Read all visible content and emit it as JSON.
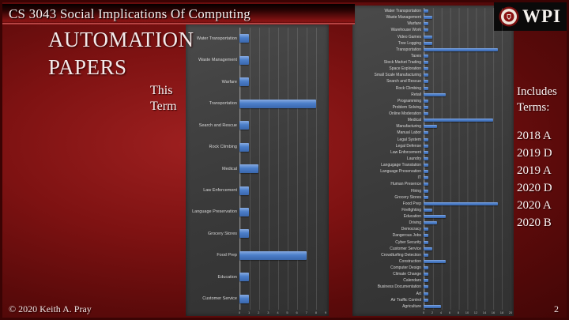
{
  "header": {
    "course_title": "CS 3043 Social Implications Of Computing",
    "logo_text": "WPI"
  },
  "slide": {
    "heading": "AUTOMATION PAPERS",
    "caption": "This Term",
    "includes_label": "Includes Terms:",
    "terms": [
      "2018 A",
      "2019 D",
      "2019 A",
      "2020 D",
      "2020 A",
      "2020 B"
    ]
  },
  "footer": {
    "copyright": "© 2020 Keith A. Pray",
    "page_number": "2"
  },
  "colors": {
    "background_red": "#7e1212",
    "banner_red": "#8c1414",
    "panel_grey": "#3f3f3f",
    "bar_blue": "#4b7ec9",
    "text_light": "#f7efef",
    "seal_red": "#8a1212"
  },
  "icons": {
    "wpi_seal": "wpi-seal-icon"
  },
  "chart_data": [
    {
      "type": "bar",
      "orientation": "horizontal",
      "title": "",
      "categories": [
        "Water Transportation",
        "Waste Management",
        "Warfare",
        "Transportation",
        "Search and Rescue",
        "Rock Climbing",
        "Medical",
        "Law Enforcement",
        "Language Preservation",
        "Grocery Stores",
        "Food Prep",
        "Education",
        "Customer Service"
      ],
      "values": [
        1,
        1,
        1,
        8,
        1,
        1,
        2,
        1,
        1,
        1,
        7,
        1,
        1
      ],
      "xlabel": "",
      "ylabel": "",
      "xlim": [
        0,
        9
      ],
      "ticks": [
        "0",
        "1",
        "2",
        "3",
        "4",
        "5",
        "6",
        "7",
        "8",
        "9"
      ],
      "grid": true,
      "legend": false
    },
    {
      "type": "bar",
      "orientation": "horizontal",
      "title": "",
      "categories": [
        "Water Transportation",
        "Waste Management",
        "Warfare",
        "Warehouse Work",
        "Video Games",
        "Tree Logging",
        "Transportation",
        "Taxes",
        "Stock Market Trading",
        "Space Exploration",
        "Small Scale Manufacturing",
        "Search and Rescue",
        "Rock Climbing",
        "Retail",
        "Programming",
        "Problem Solving",
        "Online Moderation",
        "Medical",
        "Manufacturing",
        "Manual Labor",
        "Legal System",
        "Legal Defense",
        "Law Enforcement",
        "Laundry",
        "Langugage Translation",
        "Language Preservation",
        "IT",
        "Human Presence",
        "Hiring",
        "Grocery Stores",
        "Food Prep",
        "Firefighting",
        "Education",
        "Driving",
        "Democracy",
        "Dangerous Jobs",
        "Cyber Security",
        "Customer Service",
        "Crowdturfing Detection",
        "Construction",
        "Computer Design",
        "Climate Change",
        "Calendars",
        "Business Documentation",
        "Art",
        "Air Traffic Control",
        "Agriculture"
      ],
      "values": [
        1,
        2,
        1,
        1,
        2,
        2,
        17,
        1,
        1,
        1,
        1,
        1,
        1,
        5,
        1,
        1,
        1,
        16,
        3,
        1,
        1,
        1,
        1,
        1,
        1,
        1,
        1,
        1,
        1,
        1,
        17,
        2,
        5,
        3,
        1,
        1,
        1,
        2,
        1,
        5,
        1,
        1,
        1,
        1,
        1,
        1,
        4
      ],
      "xlabel": "",
      "ylabel": "",
      "xlim": [
        0,
        20
      ],
      "ticks": [
        "0",
        "2",
        "4",
        "6",
        "8",
        "10",
        "12",
        "14",
        "16",
        "18",
        "20"
      ],
      "grid": true,
      "legend": false
    }
  ]
}
